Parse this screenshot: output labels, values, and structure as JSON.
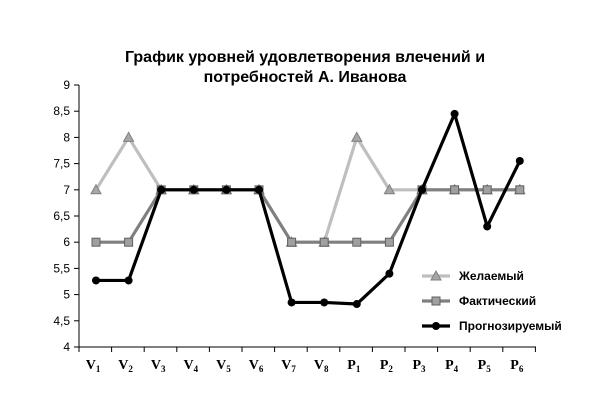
{
  "chart_data": {
    "type": "line",
    "title": [
      "График уровней удовлетворения влечений и",
      "потребностей А. Иванова"
    ],
    "xlabel": "",
    "ylabel": "",
    "ylim": [
      4,
      9
    ],
    "yticks": [
      "4",
      "4,5",
      "5",
      "5,5",
      "6",
      "6,5",
      "7",
      "7,5",
      "8",
      "8,5",
      "9"
    ],
    "categories": [
      {
        "main": "V",
        "sub": "1"
      },
      {
        "main": "V",
        "sub": "2"
      },
      {
        "main": "V",
        "sub": "3"
      },
      {
        "main": "V",
        "sub": "4"
      },
      {
        "main": "V",
        "sub": "5"
      },
      {
        "main": "V",
        "sub": "6"
      },
      {
        "main": "V",
        "sub": "7"
      },
      {
        "main": "V",
        "sub": "8"
      },
      {
        "main": "P",
        "sub": "1"
      },
      {
        "main": "P",
        "sub": "2"
      },
      {
        "main": "P",
        "sub": "3"
      },
      {
        "main": "P",
        "sub": "4"
      },
      {
        "main": "P",
        "sub": "5"
      },
      {
        "main": "P",
        "sub": "6"
      }
    ],
    "series": [
      {
        "name": "Желаемый",
        "color": "#bfbfbf",
        "marker": "triangle",
        "values": [
          7,
          8,
          7,
          7,
          7,
          7,
          6,
          6,
          8,
          7,
          7,
          7,
          7,
          7
        ]
      },
      {
        "name": "Фактический",
        "color": "#808080",
        "marker": "square",
        "values": [
          6,
          6,
          7,
          7,
          7,
          7,
          6,
          6,
          6,
          6,
          7,
          7,
          7,
          7
        ]
      },
      {
        "name": "Прогнозируемый",
        "color": "#000000",
        "marker": "circle",
        "values": [
          5.27,
          5.27,
          7,
          7,
          7,
          7,
          4.85,
          4.85,
          4.82,
          5.4,
          7,
          8.45,
          6.3,
          7.55
        ]
      }
    ],
    "grid": false,
    "legend": "right"
  }
}
